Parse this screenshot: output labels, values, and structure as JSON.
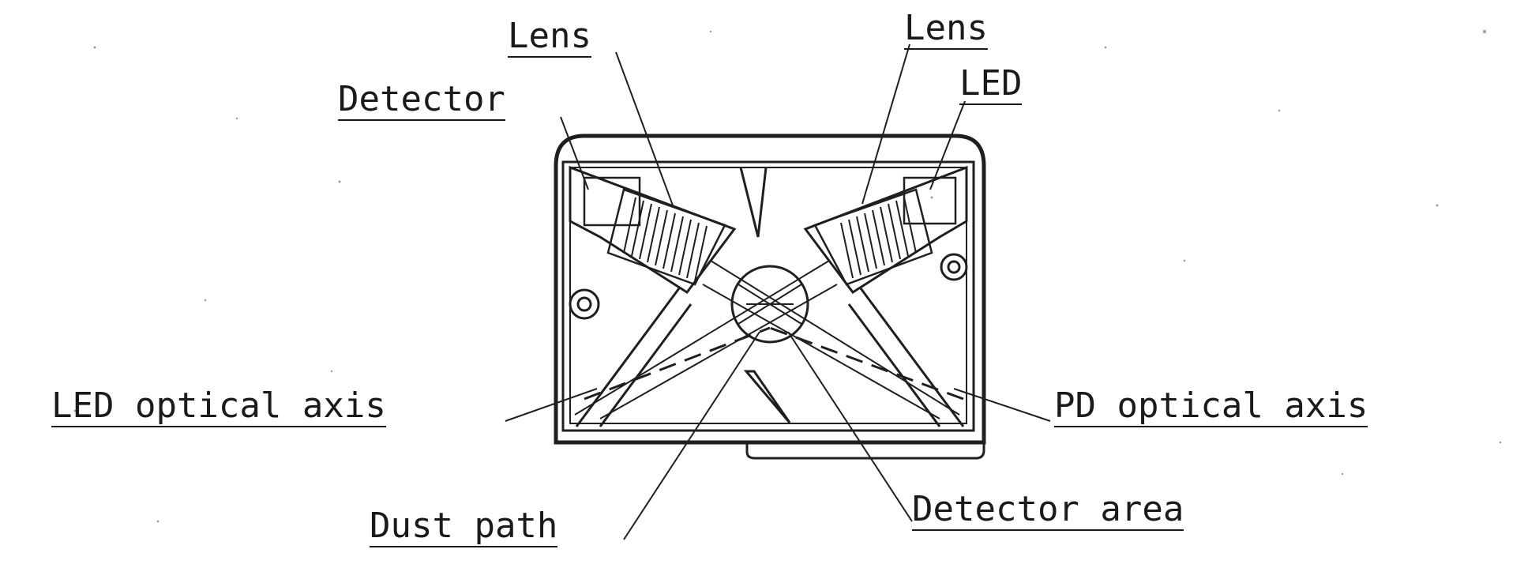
{
  "labels": {
    "lens_left": "Lens",
    "lens_right": "Lens",
    "detector": "Detector",
    "led": "LED",
    "led_optical_axis": "LED optical axis",
    "pd_optical_axis": "PD optical axis",
    "dust_path": "Dust path",
    "detector_area": "Detector area"
  },
  "colors": {
    "ink": "#1f1f1f",
    "paper": "#ffffff"
  }
}
